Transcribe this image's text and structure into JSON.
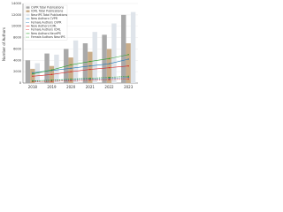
{
  "chart_data": {
    "type": "bar",
    "y_label": "Number of Authors",
    "categories": [
      "2018",
      "2019",
      "2020",
      "2021",
      "2022",
      "2023"
    ],
    "ylim": [
      0,
      14000
    ],
    "yticks": [
      0,
      2000,
      4000,
      6000,
      8000,
      10000,
      12000,
      14000
    ],
    "grid": true,
    "legend": "upper left",
    "series": [
      {
        "name": "CVPR Total Publications",
        "type": "bar",
        "color": "#a9a9a9",
        "values": [
          4000,
          5200,
          6000,
          7000,
          8500,
          12000
        ]
      },
      {
        "name": "ICML Total Publications",
        "type": "bar",
        "color": "#c9ad8a",
        "values": [
          2500,
          3000,
          4500,
          5500,
          6000,
          7000
        ]
      },
      {
        "name": "NeurIPS Total Publications",
        "type": "bar",
        "color": "#dfe4ea",
        "values": [
          3500,
          5000,
          7500,
          9000,
          10500,
          12500
        ]
      },
      {
        "name": "New Authors CVPR",
        "type": "line",
        "color": "#1f77b4",
        "dash": false,
        "values": [
          1800,
          2200,
          2600,
          3000,
          3400,
          4200
        ]
      },
      {
        "name": "Female Authors CVPR",
        "type": "line",
        "color": "#1f77b4",
        "dash": true,
        "values": [
          400,
          500,
          600,
          700,
          800,
          1000
        ]
      },
      {
        "name": "New Authors ICML",
        "type": "line",
        "color": "#d62728",
        "dash": false,
        "values": [
          1200,
          1500,
          2000,
          2400,
          2700,
          3000
        ]
      },
      {
        "name": "Female Authors ICML",
        "type": "line",
        "color": "#d62728",
        "dash": true,
        "values": [
          250,
          300,
          400,
          500,
          600,
          700
        ]
      },
      {
        "name": "New Authors NeurIPS",
        "type": "line",
        "color": "#2ca02c",
        "dash": false,
        "values": [
          1600,
          2300,
          3200,
          3800,
          4300,
          5000
        ]
      },
      {
        "name": "Female Authors NeurIPS",
        "type": "line",
        "color": "#2ca02c",
        "dash": true,
        "values": [
          350,
          500,
          700,
          850,
          1000,
          1200
        ]
      }
    ]
  }
}
